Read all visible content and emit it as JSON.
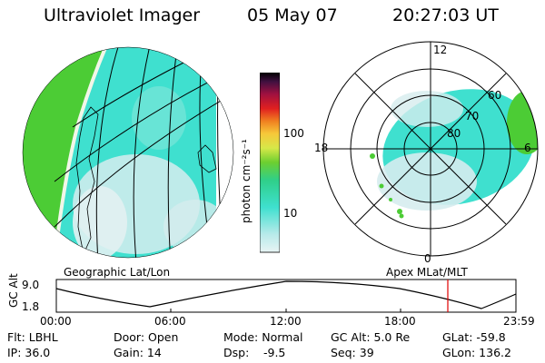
{
  "header": {
    "instrument": "Ultraviolet Imager",
    "date": "05 May 07",
    "time": "20:27:03 UT"
  },
  "colorbar": {
    "unit_label": "photon cm⁻²s⁻¹",
    "ticks": [
      "100",
      "10"
    ]
  },
  "left_panel": {
    "caption": "Geographic Lat/Lon"
  },
  "right_panel": {
    "caption": "Apex MLat/MLT",
    "mlt_labels": [
      "12",
      "18",
      "6",
      "0"
    ],
    "mlat_labels": [
      "60",
      "70",
      "80"
    ]
  },
  "timeline": {
    "axis_label": "GC Alt",
    "y_ticks": [
      "9.0",
      "1.8"
    ],
    "x_ticks": [
      "00:00",
      "06:00",
      "12:00",
      "18:00",
      "23:59"
    ],
    "marker_color": "#e00000"
  },
  "info": {
    "row1": [
      "Flt: LBHL",
      "Door: Open",
      "Mode: Normal",
      "GC Alt: 5.0 Re",
      "GLat: -59.8"
    ],
    "row2": [
      "IP: 36.0",
      "Gain: 14",
      "Dsp:",
      "-9.5",
      "Seq: 39",
      "GLon: 136.2"
    ]
  },
  "colors": {
    "cyan": "#3fe0cf",
    "green": "#4ccc35",
    "pale": "#d6ecee"
  }
}
